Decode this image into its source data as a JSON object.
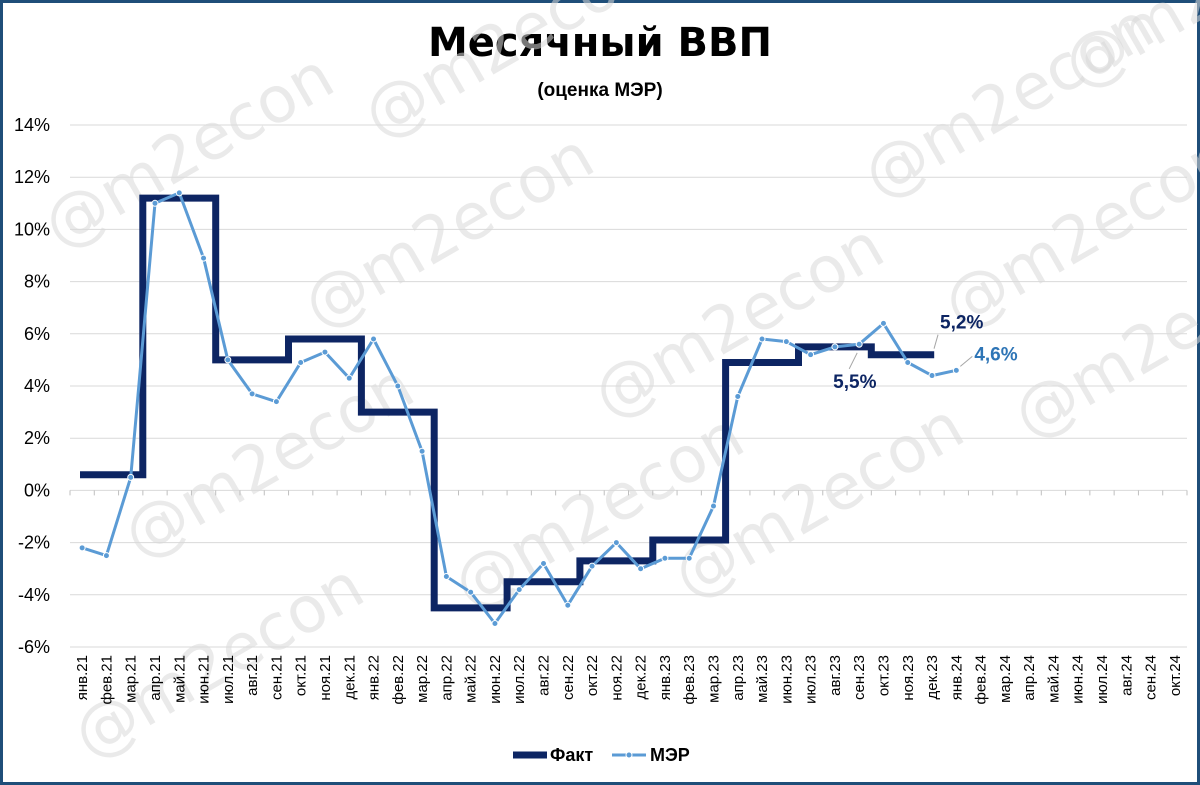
{
  "chart_data": {
    "type": "line",
    "title": "Месячный ВВП",
    "subtitle": "(оценка МЭР)",
    "categories": [
      "янв.21",
      "фев.21",
      "мар.21",
      "апр.21",
      "май.21",
      "июн.21",
      "июл.21",
      "авг.21",
      "сен.21",
      "окт.21",
      "ноя.21",
      "дек.21",
      "янв.22",
      "фев.22",
      "мар.22",
      "апр.22",
      "май.22",
      "июн.22",
      "июл.22",
      "авг.22",
      "сен.22",
      "окт.22",
      "ноя.22",
      "дек.22",
      "янв.23",
      "фев.23",
      "мар.23",
      "апр.23",
      "май.23",
      "июн.23",
      "июл.23",
      "авг.23",
      "сен.23",
      "окт.23",
      "ноя.23",
      "дек.23",
      "янв.24",
      "фев.24",
      "мар.24",
      "апр.24",
      "май.24",
      "июн.24",
      "июл.24",
      "авг.24",
      "сен.24",
      "окт.24"
    ],
    "yticks": [
      "-6%",
      "-4%",
      "-2%",
      "0%",
      "2%",
      "4%",
      "6%",
      "8%",
      "10%",
      "12%",
      "14%"
    ],
    "ylim": [
      -6,
      14
    ],
    "grid": true,
    "legend_position": "bottom",
    "series": [
      {
        "name": "Факт",
        "color": "#0d2563",
        "style": "step-thick",
        "values": [
          0.6,
          0.6,
          0.6,
          11.2,
          11.2,
          11.2,
          5.0,
          5.0,
          5.0,
          5.8,
          5.8,
          5.8,
          3.0,
          3.0,
          3.0,
          -4.5,
          -4.5,
          -4.5,
          -3.5,
          -3.5,
          -3.5,
          -2.7,
          -2.7,
          -2.7,
          -1.9,
          -1.9,
          -1.9,
          4.9,
          4.9,
          4.9,
          5.5,
          5.5,
          5.5,
          5.2,
          5.2,
          5.2,
          null,
          null,
          null,
          null,
          null,
          null,
          null,
          null,
          null,
          null
        ]
      },
      {
        "name": "МЭР",
        "color": "#5b9bd5",
        "style": "line-markers",
        "values": [
          -2.2,
          -2.5,
          0.5,
          11.0,
          11.4,
          8.9,
          5.0,
          3.7,
          3.4,
          4.9,
          5.3,
          4.3,
          5.8,
          4.0,
          1.5,
          -3.3,
          -3.9,
          -5.1,
          -3.8,
          -2.8,
          -4.4,
          -2.9,
          -2.0,
          -3.0,
          -2.6,
          -2.6,
          -0.6,
          3.6,
          5.8,
          5.7,
          5.2,
          5.5,
          5.6,
          6.4,
          4.9,
          4.4,
          4.6,
          null,
          null,
          null,
          null,
          null,
          null,
          null,
          null,
          null
        ]
      }
    ],
    "annotations": [
      {
        "text": "5,2%",
        "color": "#0d2563",
        "series": "Факт",
        "index": 35
      },
      {
        "text": "4,6%",
        "color": "#2e75b6",
        "series": "МЭР",
        "index": 36
      },
      {
        "text": "5,5%",
        "color": "#0d2563",
        "series": "Факт",
        "index": 32
      }
    ],
    "watermark": "@m2econ"
  }
}
